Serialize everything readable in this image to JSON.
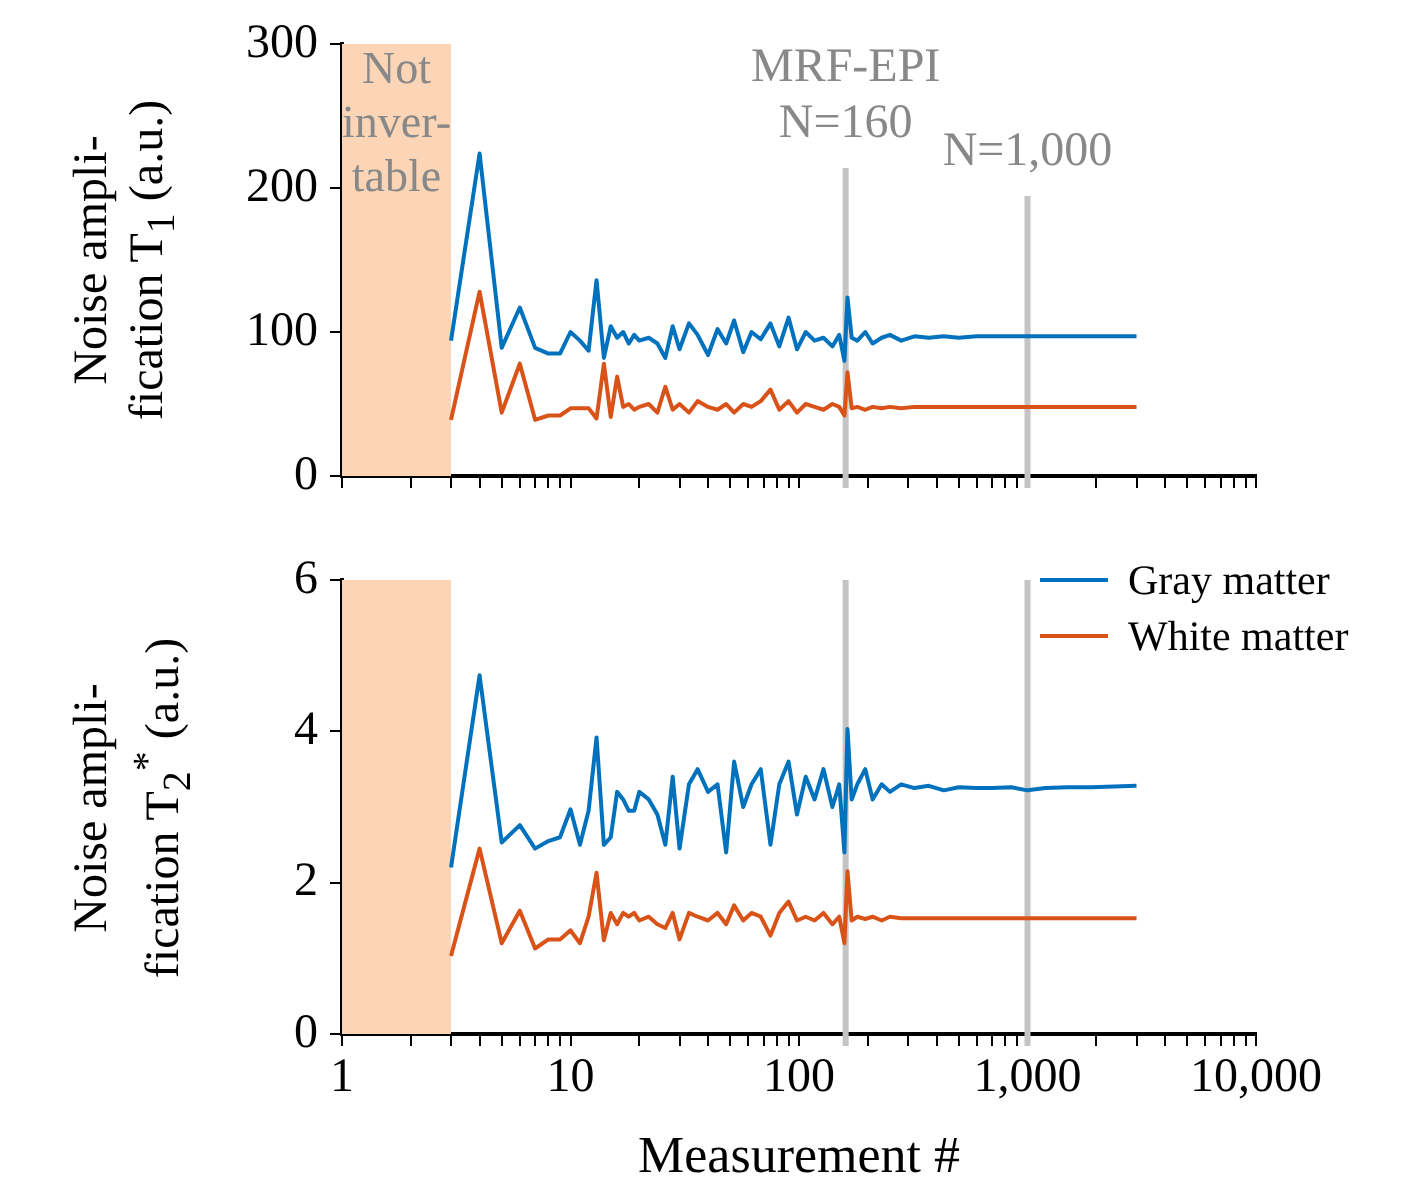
{
  "chart_data": [
    {
      "type": "line",
      "x": [
        3,
        4,
        5,
        6,
        7,
        8,
        9,
        10,
        11,
        12,
        13,
        14,
        15,
        16,
        17,
        18,
        19,
        20,
        22,
        24,
        26,
        28,
        30,
        33,
        36,
        40,
        44,
        48,
        52,
        57,
        62,
        68,
        75,
        82,
        90,
        98,
        107,
        117,
        128,
        140,
        150,
        158,
        163,
        170,
        180,
        195,
        210,
        230,
        250,
        280,
        320,
        370,
        430,
        500,
        600,
        700,
        850,
        1000,
        1200,
        1500,
        1900,
        2400,
        3000
      ],
      "series": [
        {
          "color": "#0072bd",
          "values": [
            94,
            224,
            89,
            117,
            89,
            85,
            85,
            100,
            94,
            87,
            136,
            82,
            104,
            96,
            100,
            92,
            98,
            94,
            96,
            92,
            82,
            104,
            88,
            106,
            98,
            84,
            102,
            92,
            108,
            86,
            100,
            95,
            106,
            90,
            110,
            88,
            100,
            94,
            96,
            90,
            98,
            80,
            124,
            96,
            94,
            100,
            92,
            96,
            98,
            94,
            97,
            96,
            97,
            96,
            97,
            97,
            97,
            97,
            97,
            97,
            97,
            97,
            97
          ]
        },
        {
          "color": "#d95319",
          "values": [
            39,
            128,
            44,
            78,
            39,
            42,
            42,
            47,
            47,
            47,
            40,
            78,
            41,
            69,
            48,
            50,
            46,
            48,
            50,
            44,
            62,
            46,
            50,
            44,
            52,
            48,
            46,
            50,
            44,
            50,
            48,
            52,
            60,
            46,
            52,
            44,
            50,
            48,
            46,
            50,
            48,
            42,
            72,
            47,
            48,
            46,
            48,
            47,
            48,
            47,
            48,
            48,
            48,
            48,
            48,
            48,
            48,
            48,
            48,
            48,
            48,
            48,
            48
          ]
        }
      ],
      "xlim": [
        1,
        10000
      ],
      "xticks": [
        {
          "value": 1,
          "label": null
        },
        {
          "value": 2,
          "label": null
        },
        {
          "value": 3,
          "label": null
        },
        {
          "value": 4,
          "label": null
        },
        {
          "value": 5,
          "label": null
        },
        {
          "value": 6,
          "label": null
        },
        {
          "value": 7,
          "label": null
        },
        {
          "value": 8,
          "label": null
        },
        {
          "value": 9,
          "label": null
        },
        {
          "value": 10,
          "label": null
        },
        {
          "value": 20,
          "label": null
        },
        {
          "value": 30,
          "label": null
        },
        {
          "value": 40,
          "label": null
        },
        {
          "value": 50,
          "label": null
        },
        {
          "value": 60,
          "label": null
        },
        {
          "value": 70,
          "label": null
        },
        {
          "value": 80,
          "label": null
        },
        {
          "value": 90,
          "label": null
        },
        {
          "value": 100,
          "label": null
        },
        {
          "value": 200,
          "label": null
        },
        {
          "value": 300,
          "label": null
        },
        {
          "value": 400,
          "label": null
        },
        {
          "value": 500,
          "label": null
        },
        {
          "value": 600,
          "label": null
        },
        {
          "value": 700,
          "label": null
        },
        {
          "value": 800,
          "label": null
        },
        {
          "value": 900,
          "label": null
        },
        {
          "value": 1000,
          "label": null
        },
        {
          "value": 2000,
          "label": null
        },
        {
          "value": 3000,
          "label": null
        },
        {
          "value": 4000,
          "label": null
        },
        {
          "value": 5000,
          "label": null
        },
        {
          "value": 6000,
          "label": null
        },
        {
          "value": 7000,
          "label": null
        },
        {
          "value": 8000,
          "label": null
        },
        {
          "value": 9000,
          "label": null
        },
        {
          "value": 10000,
          "label": null
        }
      ],
      "ylim": [
        0,
        300
      ],
      "yticks": [
        0,
        100,
        200,
        300
      ],
      "ylabel": "Noise ampli-\nfication T$_{1}$ (a.u.)",
      "log": "x",
      "tick_labels": "y",
      "bands": [
        {
          "axis": "x",
          "from": 1,
          "to": 3,
          "label": "Not\ninver-\ntable",
          "color": "#fbd5b5"
        }
      ],
      "ref_lines": [
        {
          "axis": "x",
          "value": 160,
          "label": "MRF-EPI\nN=160",
          "color": "#c4c4c4"
        },
        {
          "axis": "x",
          "value": 1000,
          "label": "N=1,000",
          "color": "#c4c4c4"
        }
      ]
    },
    {
      "type": "line",
      "x": [
        3,
        4,
        5,
        6,
        7,
        8,
        9,
        10,
        11,
        12,
        13,
        14,
        15,
        16,
        17,
        18,
        19,
        20,
        22,
        24,
        26,
        28,
        30,
        33,
        36,
        40,
        44,
        48,
        52,
        57,
        62,
        68,
        75,
        82,
        90,
        98,
        107,
        117,
        128,
        140,
        150,
        158,
        163,
        170,
        180,
        195,
        210,
        230,
        250,
        280,
        320,
        370,
        430,
        500,
        600,
        700,
        850,
        1000,
        1200,
        1500,
        1900,
        2400,
        3000
      ],
      "series": [
        {
          "name": "Gray matter",
          "color": "#0072bd",
          "values": [
            2.2,
            4.74,
            2.53,
            2.76,
            2.45,
            2.55,
            2.6,
            2.97,
            2.5,
            2.95,
            3.92,
            2.5,
            2.6,
            3.2,
            3.1,
            2.95,
            2.95,
            3.2,
            3.1,
            2.9,
            2.5,
            3.4,
            2.45,
            3.3,
            3.5,
            3.2,
            3.3,
            2.4,
            3.6,
            3.0,
            3.3,
            3.5,
            2.5,
            3.3,
            3.6,
            2.9,
            3.4,
            3.1,
            3.5,
            3.0,
            3.3,
            2.4,
            4.03,
            3.1,
            3.3,
            3.5,
            3.1,
            3.3,
            3.2,
            3.3,
            3.25,
            3.28,
            3.22,
            3.26,
            3.25,
            3.25,
            3.26,
            3.22,
            3.25,
            3.26,
            3.26,
            3.27,
            3.28
          ]
        },
        {
          "name": "White matter",
          "color": "#d95319",
          "values": [
            1.03,
            2.45,
            1.2,
            1.63,
            1.13,
            1.25,
            1.25,
            1.37,
            1.2,
            1.55,
            2.13,
            1.24,
            1.6,
            1.45,
            1.6,
            1.55,
            1.6,
            1.5,
            1.55,
            1.45,
            1.4,
            1.6,
            1.25,
            1.6,
            1.55,
            1.5,
            1.6,
            1.45,
            1.7,
            1.5,
            1.6,
            1.55,
            1.3,
            1.6,
            1.75,
            1.5,
            1.55,
            1.5,
            1.6,
            1.45,
            1.55,
            1.2,
            2.15,
            1.5,
            1.55,
            1.52,
            1.55,
            1.5,
            1.55,
            1.53,
            1.53,
            1.53,
            1.53,
            1.53,
            1.53,
            1.53,
            1.53,
            1.53,
            1.53,
            1.53,
            1.53,
            1.53,
            1.53
          ]
        }
      ],
      "xlim": [
        1,
        10000
      ],
      "xticks": [
        {
          "value": 1,
          "label": "1"
        },
        {
          "value": 2,
          "label": null
        },
        {
          "value": 3,
          "label": null
        },
        {
          "value": 4,
          "label": null
        },
        {
          "value": 5,
          "label": null
        },
        {
          "value": 6,
          "label": null
        },
        {
          "value": 7,
          "label": null
        },
        {
          "value": 8,
          "label": null
        },
        {
          "value": 9,
          "label": null
        },
        {
          "value": 10,
          "label": "10"
        },
        {
          "value": 20,
          "label": null
        },
        {
          "value": 30,
          "label": null
        },
        {
          "value": 40,
          "label": null
        },
        {
          "value": 50,
          "label": null
        },
        {
          "value": 60,
          "label": null
        },
        {
          "value": 70,
          "label": null
        },
        {
          "value": 80,
          "label": null
        },
        {
          "value": 90,
          "label": null
        },
        {
          "value": 100,
          "label": "100"
        },
        {
          "value": 200,
          "label": null
        },
        {
          "value": 300,
          "label": null
        },
        {
          "value": 400,
          "label": null
        },
        {
          "value": 500,
          "label": null
        },
        {
          "value": 600,
          "label": null
        },
        {
          "value": 700,
          "label": null
        },
        {
          "value": 800,
          "label": null
        },
        {
          "value": 900,
          "label": null
        },
        {
          "value": 1000,
          "label": "1,000"
        },
        {
          "value": 2000,
          "label": null
        },
        {
          "value": 3000,
          "label": null
        },
        {
          "value": 4000,
          "label": null
        },
        {
          "value": 5000,
          "label": null
        },
        {
          "value": 6000,
          "label": null
        },
        {
          "value": 7000,
          "label": null
        },
        {
          "value": 8000,
          "label": null
        },
        {
          "value": 9000,
          "label": null
        },
        {
          "value": 10000,
          "label": "10,000"
        }
      ],
      "ylim": [
        0,
        6
      ],
      "yticks": [
        0,
        2,
        4,
        6
      ],
      "xlabel": "Measurement #",
      "ylabel": "Noise ampli-\nfication T$_{2}$$^{*}$ (a.u.)",
      "log": "x",
      "legend": "top right",
      "bands": [
        {
          "axis": "x",
          "from": 1,
          "to": 3,
          "color": "#fbd5b5"
        }
      ],
      "ref_lines": [
        {
          "axis": "x",
          "value": 160,
          "color": "#c4c4c4"
        },
        {
          "axis": "x",
          "value": 1000,
          "color": "#c4c4c4"
        }
      ]
    }
  ]
}
